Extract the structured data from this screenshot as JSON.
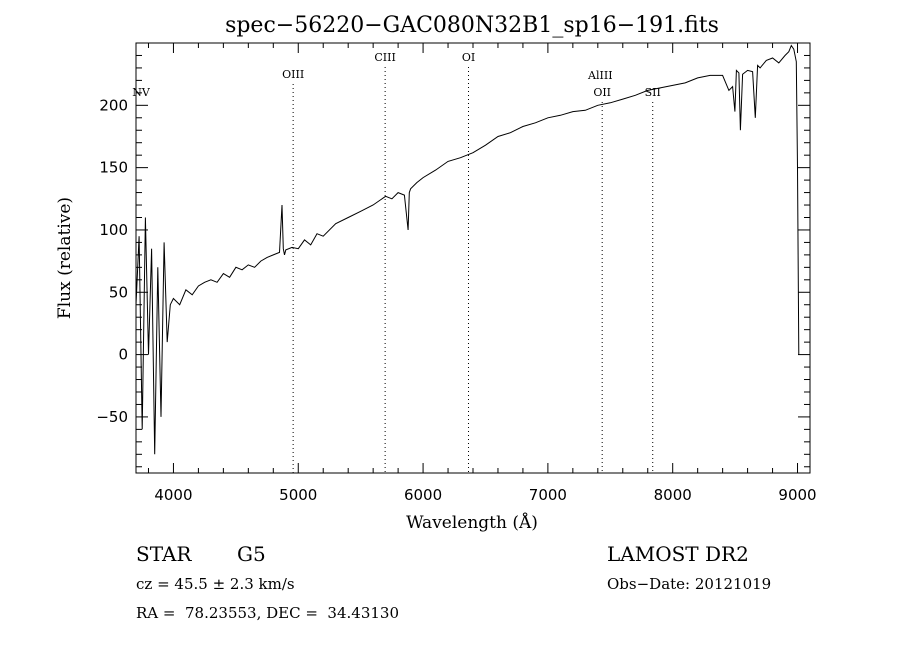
{
  "chart_data": {
    "type": "line",
    "title": "spec−56220−GAC080N32B1_sp16−191.fits",
    "xlabel": "Wavelength (Å)",
    "ylabel": "Flux (relative)",
    "xlim": [
      3700,
      9100
    ],
    "ylim": [
      -95,
      250
    ],
    "x_ticks": [
      4000,
      5000,
      6000,
      7000,
      8000,
      9000
    ],
    "y_ticks": [
      -50,
      0,
      50,
      100,
      150,
      200
    ],
    "x_tick_labels": [
      "4000",
      "5000",
      "6000",
      "7000",
      "8000",
      "9000"
    ],
    "y_tick_labels": [
      "−50",
      "0",
      "50",
      "100",
      "150",
      "200"
    ],
    "grid": false,
    "line_color": "#000000",
    "marker_color": "#000000",
    "series": [
      {
        "x": [
          3700,
          3725,
          3750,
          3775,
          3800,
          3825,
          3850,
          3875,
          3900,
          3925,
          3950,
          3975,
          4000,
          4050,
          4100,
          4150,
          4200,
          4250,
          4300,
          4350,
          4400,
          4450,
          4500,
          4550,
          4600,
          4650,
          4700,
          4750,
          4800,
          4850,
          4870,
          4880,
          4890,
          4900,
          4950,
          5000,
          5050,
          5100,
          5150,
          5200,
          5300,
          5400,
          5500,
          5600,
          5700,
          5750,
          5800,
          5850,
          5880,
          5890,
          5900,
          5950,
          6000,
          6100,
          6200,
          6300,
          6400,
          6500,
          6600,
          6700,
          6800,
          6900,
          7000,
          7100,
          7200,
          7300,
          7400,
          7500,
          7600,
          7700,
          7800,
          7900,
          8000,
          8100,
          8200,
          8300,
          8400,
          8450,
          8480,
          8498,
          8510,
          8530,
          8542,
          8560,
          8600,
          8640,
          8662,
          8680,
          8700,
          8750,
          8800,
          8850,
          8900,
          8930,
          8950,
          8970,
          8990,
          9000,
          9010
        ],
        "y": [
          40,
          95,
          -60,
          110,
          0,
          85,
          -80,
          70,
          -50,
          90,
          10,
          40,
          45,
          40,
          52,
          48,
          55,
          58,
          60,
          58,
          65,
          62,
          70,
          68,
          72,
          70,
          75,
          78,
          80,
          82,
          120,
          85,
          80,
          84,
          86,
          85,
          92,
          88,
          97,
          95,
          105,
          110,
          115,
          120,
          127,
          125,
          130,
          128,
          100,
          130,
          133,
          138,
          142,
          148,
          155,
          158,
          162,
          168,
          175,
          178,
          183,
          186,
          190,
          192,
          195,
          196,
          200,
          202,
          205,
          208,
          212,
          214,
          216,
          218,
          222,
          224,
          224,
          212,
          215,
          195,
          228,
          226,
          180,
          225,
          228,
          227,
          190,
          232,
          230,
          236,
          238,
          234,
          240,
          243,
          248,
          245,
          235,
          150,
          0
        ]
      }
    ],
    "lines": [
      {
        "label": "NV",
        "x": 3740
      },
      {
        "label": "OIII",
        "x": 4959
      },
      {
        "label": "CIII",
        "x": 5696
      },
      {
        "label": "OI",
        "x": 6364
      },
      {
        "label": "AlIII",
        "x": 7420
      },
      {
        "label": "OII",
        "x": 7435
      },
      {
        "label": "SII",
        "x": 7840
      }
    ],
    "line_label_levels": [
      1,
      2,
      3,
      3,
      4,
      5,
      5
    ]
  },
  "info": {
    "object_type": "STAR",
    "subclass": "G5",
    "survey": "LAMOST DR2",
    "cz": "cz = 45.5 ± 2.3 km/s",
    "obs_date": "Obs−Date: 20121019",
    "coords": "RA =  78.23553, DEC =  34.43130"
  }
}
